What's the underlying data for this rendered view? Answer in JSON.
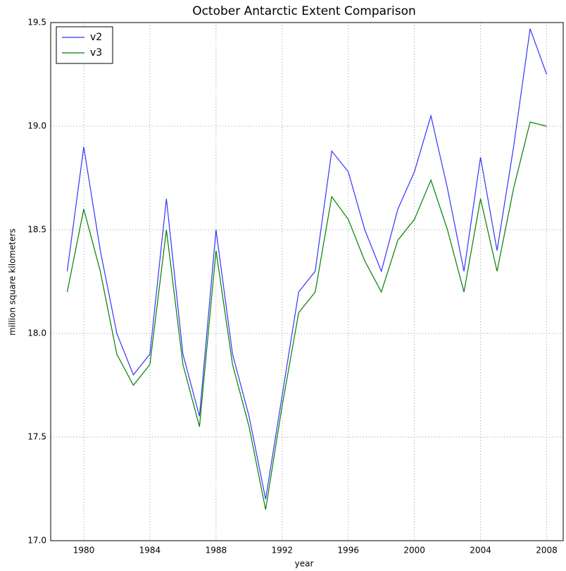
{
  "chart_data": {
    "type": "line",
    "title": "October Antarctic Extent Comparison",
    "xlabel": "year",
    "ylabel": "million square kilometers",
    "x": [
      1979,
      1980,
      1981,
      1982,
      1983,
      1984,
      1985,
      1986,
      1987,
      1988,
      1989,
      1990,
      1991,
      1992,
      1993,
      1994,
      1995,
      1996,
      1997,
      1998,
      1999,
      2000,
      2001,
      2002,
      2003,
      2004,
      2005,
      2006,
      2007,
      2008
    ],
    "series": [
      {
        "name": "v2",
        "color": "#3333ff",
        "values": [
          18.3,
          18.9,
          18.4,
          18.0,
          17.8,
          17.9,
          18.65,
          17.9,
          17.6,
          18.5,
          17.9,
          17.6,
          17.2,
          17.7,
          18.2,
          18.3,
          18.88,
          18.78,
          18.5,
          18.3,
          18.6,
          18.78,
          19.05,
          18.7,
          18.3,
          18.85,
          18.4,
          18.9,
          19.47,
          19.25
        ]
      },
      {
        "name": "v3",
        "color": "#008000",
        "values": [
          18.2,
          18.6,
          18.3,
          17.9,
          17.75,
          17.85,
          18.5,
          17.85,
          17.55,
          18.4,
          17.85,
          17.55,
          17.15,
          17.65,
          18.1,
          18.2,
          18.66,
          18.55,
          18.35,
          18.2,
          18.45,
          18.55,
          18.74,
          18.5,
          18.2,
          18.65,
          18.3,
          18.7,
          19.02,
          19.0
        ]
      }
    ],
    "xlim": [
      1978,
      2009
    ],
    "xticks": [
      1980,
      1984,
      1988,
      1992,
      1996,
      2000,
      2004,
      2008
    ],
    "ylim": [
      17,
      19.5
    ],
    "yticks": [
      {
        "value": 17,
        "label": "17.0"
      },
      17.5,
      {
        "value": 18,
        "label": "18.0"
      },
      18.5,
      {
        "value": 19,
        "label": "19.0"
      },
      19.5
    ],
    "grid": true,
    "legend": "upper left"
  }
}
